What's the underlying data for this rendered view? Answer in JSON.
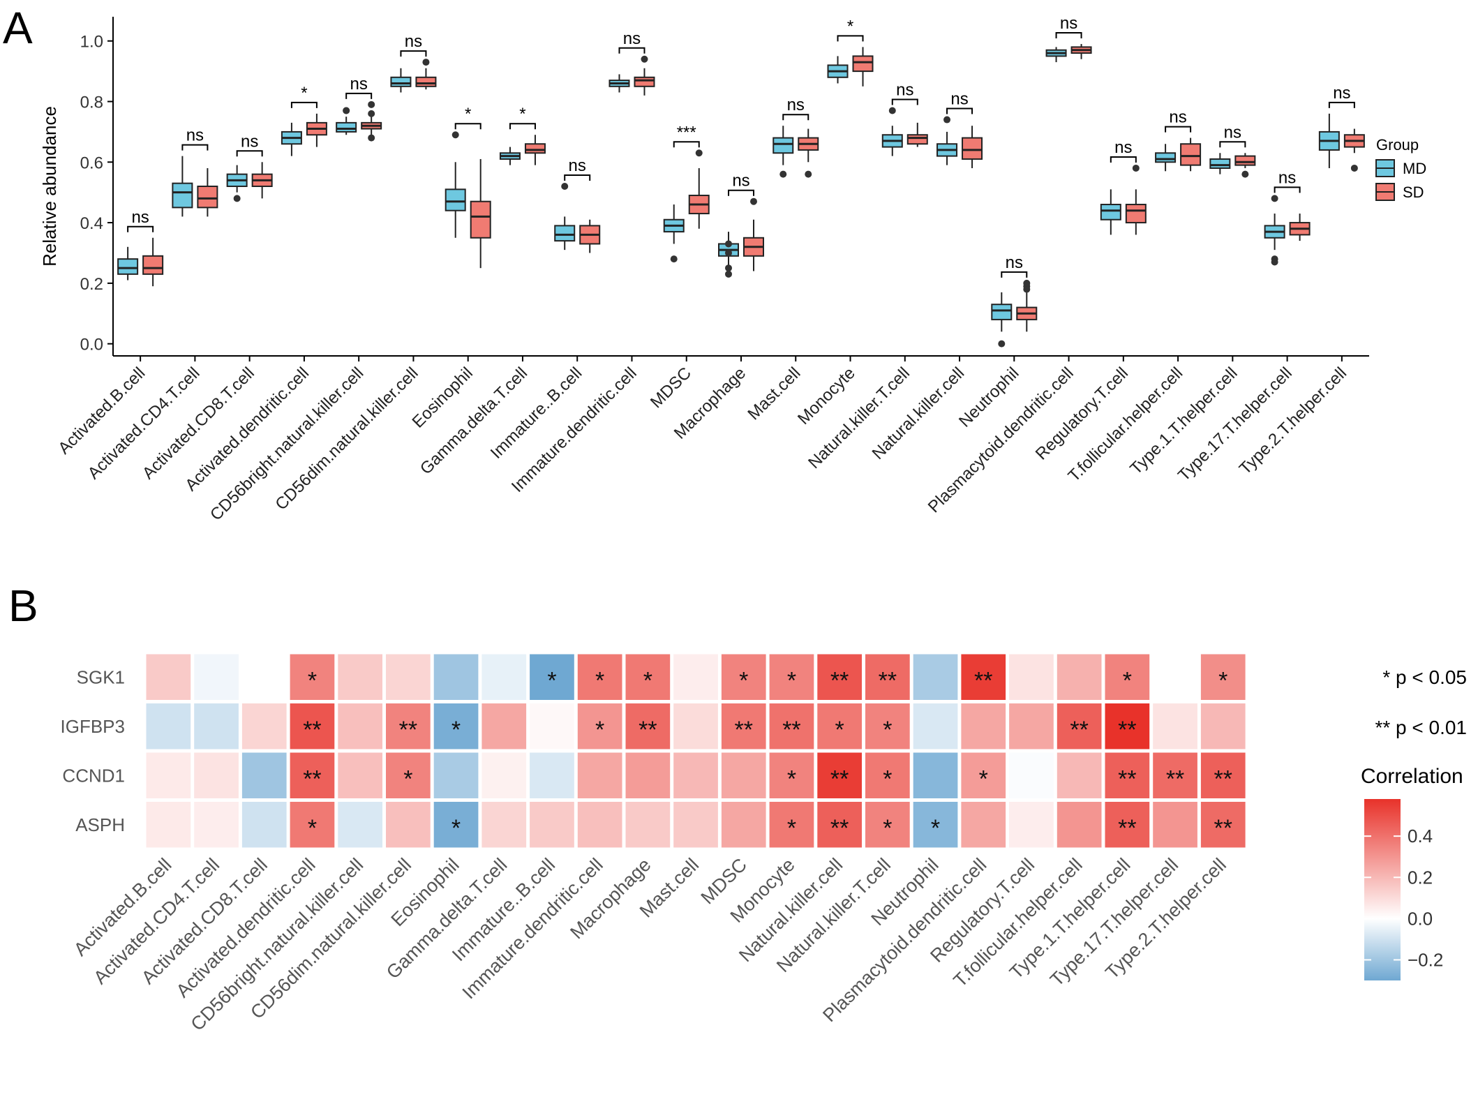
{
  "panels": {
    "a_label": "A",
    "b_label": "B"
  },
  "chart_data": [
    {
      "type": "box",
      "ylabel": "Relative abundance",
      "ylim": [
        -0.04,
        1.08
      ],
      "yticks": [
        "0.0",
        "0.2",
        "0.4",
        "0.6",
        "0.8",
        "1.0"
      ],
      "legend": {
        "title": "Group",
        "placement": "right",
        "entries": [
          {
            "name": "MD",
            "color": "#6ec8e0"
          },
          {
            "name": "SD",
            "color": "#f07b72"
          }
        ]
      },
      "categories": [
        "Activated.B.cell",
        "Activated.CD4.T.cell",
        "Activated.CD8.T.cell",
        "Activated.dendritic.cell",
        "CD56bright.natural.killer.cell",
        "CD56dim.natural.killer.cell",
        "Eosinophil",
        "Gamma.delta.T.cell",
        "Immature..B.cell",
        "Immature.dendritic.cell",
        "MDSC",
        "Macrophage",
        "Mast.cell",
        "Monocyte",
        "Natural.killer.T.cell",
        "Natural.killer.cell",
        "Neutrophil",
        "Plasmacytoid.dendritic.cell",
        "Regulatory.T.cell",
        "T.follicular.helper.cell",
        "Type.1.T.helper.cell",
        "Type.17.T.helper.cell",
        "Type.2.T.helper.cell"
      ],
      "significance": [
        "ns",
        "ns",
        "ns",
        "*",
        "ns",
        "ns",
        "*",
        "*",
        "ns",
        "ns",
        "***",
        "ns",
        "ns",
        "*",
        "ns",
        "ns",
        "ns",
        "ns",
        "ns",
        "ns",
        "ns",
        "ns",
        "ns"
      ],
      "series": [
        {
          "name": "MD",
          "boxes": [
            [
              0.21,
              0.23,
              0.25,
              0.28,
              0.32
            ],
            [
              0.42,
              0.45,
              0.5,
              0.53,
              0.62
            ],
            [
              0.5,
              0.52,
              0.54,
              0.56,
              0.59
            ],
            [
              0.62,
              0.66,
              0.68,
              0.7,
              0.73
            ],
            [
              0.69,
              0.7,
              0.71,
              0.73,
              0.75
            ],
            [
              0.83,
              0.85,
              0.86,
              0.88,
              0.91
            ],
            [
              0.35,
              0.44,
              0.47,
              0.51,
              0.6
            ],
            [
              0.59,
              0.61,
              0.62,
              0.63,
              0.65
            ],
            [
              0.31,
              0.34,
              0.36,
              0.39,
              0.42
            ],
            [
              0.83,
              0.85,
              0.86,
              0.87,
              0.89
            ],
            [
              0.33,
              0.37,
              0.39,
              0.41,
              0.46
            ],
            [
              0.26,
              0.29,
              0.31,
              0.33,
              0.37
            ],
            [
              0.59,
              0.63,
              0.66,
              0.68,
              0.72
            ],
            [
              0.86,
              0.88,
              0.9,
              0.92,
              0.95
            ],
            [
              0.62,
              0.65,
              0.67,
              0.69,
              0.72
            ],
            [
              0.59,
              0.62,
              0.64,
              0.66,
              0.7
            ],
            [
              0.04,
              0.08,
              0.11,
              0.13,
              0.17
            ],
            [
              0.93,
              0.95,
              0.96,
              0.97,
              0.98
            ],
            [
              0.36,
              0.41,
              0.44,
              0.46,
              0.51
            ],
            [
              0.57,
              0.6,
              0.61,
              0.63,
              0.66
            ],
            [
              0.56,
              0.58,
              0.59,
              0.61,
              0.63
            ],
            [
              0.31,
              0.35,
              0.37,
              0.39,
              0.43
            ],
            [
              0.58,
              0.64,
              0.67,
              0.7,
              0.76
            ]
          ],
          "outliers": [
            [],
            [],
            [
              0.48
            ],
            [],
            [
              0.77,
              0.77
            ],
            [],
            [
              0.69
            ],
            [],
            [
              0.52
            ],
            [],
            [
              0.28
            ],
            [
              0.23,
              0.25,
              0.3,
              0.33
            ],
            [
              0.56
            ],
            [],
            [
              0.77
            ],
            [
              0.74
            ],
            [
              0.0
            ],
            [],
            [],
            [],
            [],
            [
              0.48,
              0.27,
              0.28
            ],
            []
          ]
        },
        {
          "name": "SD",
          "boxes": [
            [
              0.19,
              0.23,
              0.25,
              0.29,
              0.35
            ],
            [
              0.42,
              0.45,
              0.48,
              0.52,
              0.58
            ],
            [
              0.48,
              0.52,
              0.54,
              0.56,
              0.6
            ],
            [
              0.65,
              0.69,
              0.71,
              0.73,
              0.76
            ],
            [
              0.69,
              0.71,
              0.72,
              0.73,
              0.76
            ],
            [
              0.84,
              0.85,
              0.86,
              0.88,
              0.91
            ],
            [
              0.25,
              0.35,
              0.42,
              0.47,
              0.61
            ],
            [
              0.59,
              0.63,
              0.64,
              0.66,
              0.69
            ],
            [
              0.3,
              0.33,
              0.36,
              0.39,
              0.41
            ],
            [
              0.82,
              0.85,
              0.87,
              0.88,
              0.91
            ],
            [
              0.38,
              0.43,
              0.46,
              0.49,
              0.58
            ],
            [
              0.24,
              0.29,
              0.32,
              0.35,
              0.41
            ],
            [
              0.6,
              0.64,
              0.66,
              0.68,
              0.71
            ],
            [
              0.85,
              0.9,
              0.93,
              0.95,
              0.98
            ],
            [
              0.65,
              0.66,
              0.68,
              0.69,
              0.73
            ],
            [
              0.58,
              0.61,
              0.64,
              0.68,
              0.72
            ],
            [
              0.04,
              0.08,
              0.1,
              0.12,
              0.17
            ],
            [
              0.94,
              0.96,
              0.97,
              0.98,
              0.99
            ],
            [
              0.36,
              0.4,
              0.44,
              0.46,
              0.51
            ],
            [
              0.57,
              0.59,
              0.62,
              0.66,
              0.68
            ],
            [
              0.58,
              0.59,
              0.6,
              0.62,
              0.63
            ],
            [
              0.34,
              0.36,
              0.38,
              0.4,
              0.43
            ],
            [
              0.63,
              0.65,
              0.67,
              0.69,
              0.71
            ]
          ],
          "outliers": [
            [],
            [],
            [],
            [],
            [
              0.68,
              0.76,
              0.79
            ],
            [
              0.93
            ],
            [],
            [],
            [],
            [
              0.94
            ],
            [
              0.63
            ],
            [
              0.47
            ],
            [
              0.56
            ],
            [],
            [],
            [],
            [
              0.18,
              0.19,
              0.2
            ],
            [],
            [
              0.58
            ],
            [],
            [
              0.56
            ],
            [],
            [
              0.58
            ]
          ]
        }
      ]
    },
    {
      "type": "heatmap",
      "rows": [
        "SGK1",
        "IGFBP3",
        "CCND1",
        "ASPH"
      ],
      "columns": [
        "Activated.B.cell",
        "Activated.CD4.T.cell",
        "Activated.CD8.T.cell",
        "Activated.dendritic.cell",
        "CD56bright.natural.killer.cell",
        "CD56dim.natural.killer.cell",
        "Eosinophil",
        "Gamma.delta.T.cell",
        "Immature..B.cell",
        "Immature.dendritic.cell",
        "Macrophage",
        "Mast.cell",
        "MDSC",
        "Monocyte",
        "Natural.killer.cell",
        "Natural.killer.T.cell",
        "Neutrophil",
        "Plasmacytoid.dendritic.cell",
        "Regulatory.T.cell",
        "T.follicular.helper.cell",
        "Type.1.T.helper.cell",
        "Type.17.T.helper.cell",
        "Type.2.T.helper.cell"
      ],
      "values": [
        [
          0.15,
          -0.03,
          0.0,
          0.35,
          0.15,
          0.12,
          -0.2,
          -0.05,
          -0.3,
          0.38,
          0.38,
          0.05,
          0.35,
          0.35,
          0.48,
          0.42,
          -0.18,
          0.55,
          0.08,
          0.22,
          0.35,
          0.0,
          0.32
        ],
        [
          -0.1,
          -0.1,
          0.12,
          0.48,
          0.18,
          0.35,
          -0.28,
          0.25,
          0.02,
          0.3,
          0.42,
          0.1,
          0.38,
          0.4,
          0.38,
          0.35,
          -0.08,
          0.25,
          0.25,
          0.45,
          0.58,
          0.08,
          0.2
        ],
        [
          0.06,
          0.08,
          -0.2,
          0.45,
          0.18,
          0.35,
          -0.18,
          0.04,
          -0.08,
          0.25,
          0.28,
          0.2,
          0.25,
          0.35,
          0.55,
          0.38,
          -0.25,
          0.28,
          -0.01,
          0.2,
          0.45,
          0.42,
          0.45
        ],
        [
          0.06,
          0.05,
          -0.1,
          0.38,
          -0.08,
          0.18,
          -0.28,
          0.12,
          0.15,
          0.18,
          0.15,
          0.15,
          0.25,
          0.38,
          0.45,
          0.35,
          -0.25,
          0.25,
          0.05,
          0.3,
          0.45,
          0.3,
          0.42
        ]
      ],
      "stars": [
        [
          "",
          "",
          "",
          "*",
          "",
          "",
          "",
          "",
          "*",
          "*",
          "*",
          "",
          "*",
          "*",
          "**",
          "**",
          "",
          "**",
          "",
          "",
          "*",
          "",
          "*"
        ],
        [
          "",
          "",
          "",
          "**",
          "",
          "**",
          "*",
          "",
          "",
          "*",
          "**",
          "",
          "**",
          "**",
          "*",
          "*",
          "",
          "",
          "",
          "**",
          "**",
          "",
          ""
        ],
        [
          "",
          "",
          "",
          "**",
          "",
          "*",
          "",
          "",
          "",
          "",
          "",
          "",
          "",
          "*",
          "**",
          "*",
          "",
          "*",
          "",
          "",
          "**",
          "**",
          "**"
        ],
        [
          "",
          "",
          "",
          "*",
          "",
          "",
          "*",
          "",
          "",
          "",
          "",
          "",
          "",
          "*",
          "**",
          "*",
          "*",
          "",
          "",
          "",
          "**",
          "",
          "**"
        ]
      ],
      "legend_notes": [
        "* p < 0.05",
        "** p < 0.01"
      ],
      "colorbar": {
        "title": "Correlation",
        "range": [
          -0.3,
          0.58
        ],
        "ticks": [
          "0.4",
          "0.2",
          "0.0",
          "−0.2"
        ],
        "low_color": "#6fa8d2",
        "mid_color": "#ffffff",
        "high_color": "#e8322a"
      }
    }
  ]
}
